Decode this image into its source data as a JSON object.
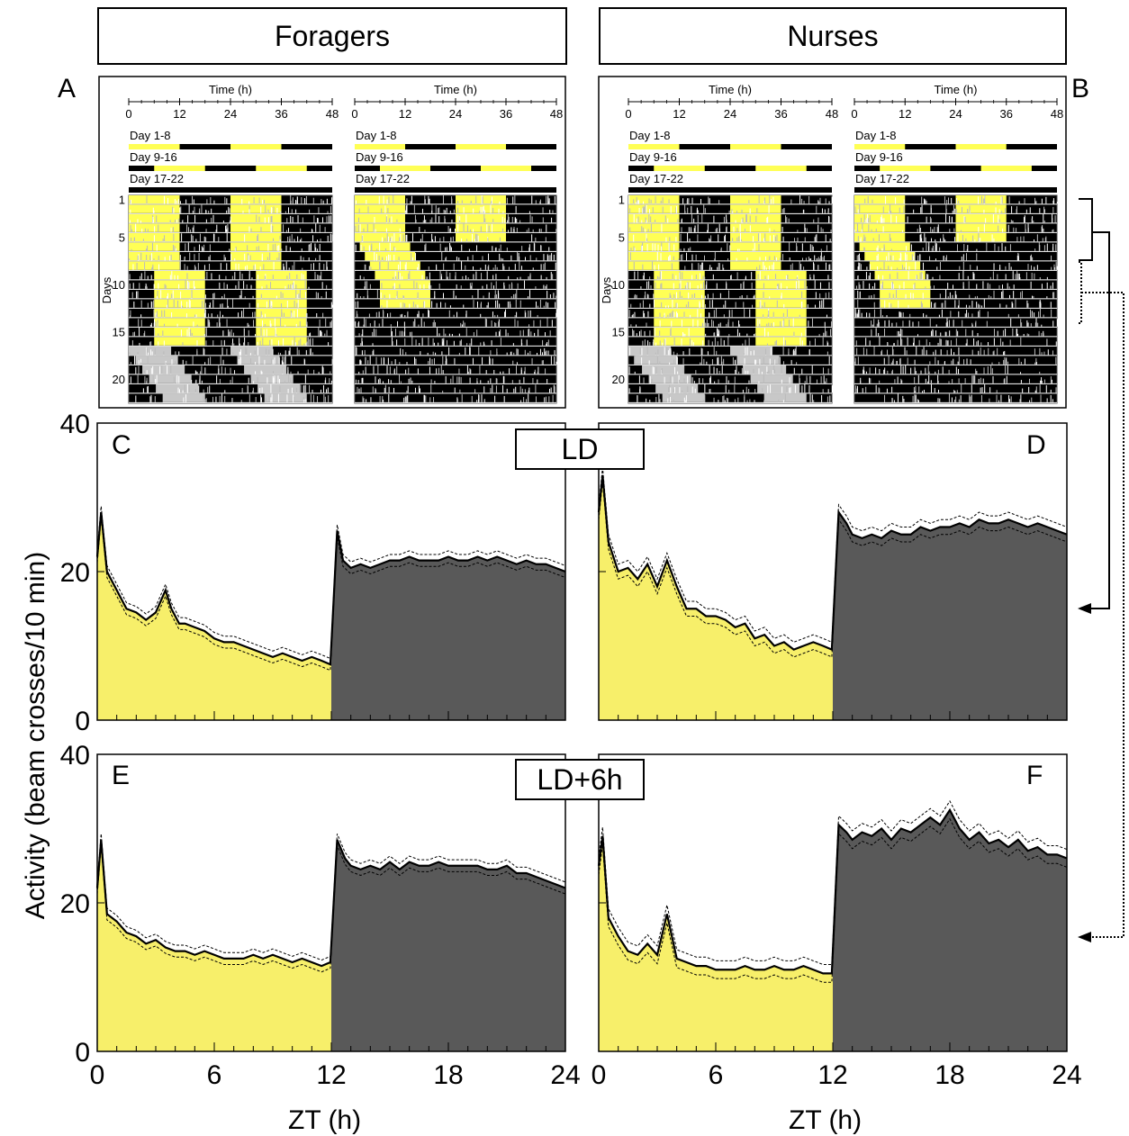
{
  "headers": {
    "left": "Foragers",
    "right": "Nurses"
  },
  "panel_labels": [
    "A",
    "B",
    "C",
    "D",
    "E",
    "F"
  ],
  "condition_tags": {
    "ld": "LD",
    "ld6": "LD+6h"
  },
  "y_axis_label": "Activity (beam crosses/10 min)",
  "x_axis_label": "ZT (h)",
  "actogram": {
    "time_label": "Time (h)",
    "time_ticks": [
      "0",
      "12",
      "24",
      "36",
      "48"
    ],
    "phase_labels": [
      "Day 1-8",
      "Day 9-16",
      "Day 17-22"
    ],
    "days_label": "Days",
    "day_ticks": [
      "1",
      "5",
      "10",
      "15",
      "20"
    ]
  },
  "colors": {
    "light": "#f7ef6a",
    "dark": "#595959",
    "actogram_light": "#ffff55",
    "actogram_bg": "#000000",
    "free_run": "#c8c8c8"
  },
  "chart_data": [
    {
      "panel": "C",
      "type": "area",
      "group": "Foragers",
      "condition": "LD",
      "xlabel": "ZT (h)",
      "ylabel": "Activity (beam crosses/10 min)",
      "xlim": [
        0,
        24
      ],
      "ylim": [
        0,
        40
      ],
      "xticks": [
        0,
        6,
        12,
        18,
        24
      ],
      "yticks": [
        0,
        20,
        40
      ],
      "light_phase": [
        0,
        12
      ],
      "dark_phase": [
        12,
        24
      ],
      "x": [
        0,
        0.2,
        0.5,
        1,
        1.5,
        2,
        2.5,
        3,
        3.5,
        3.8,
        4.2,
        4.5,
        5,
        5.5,
        6,
        6.5,
        7,
        7.5,
        8,
        8.5,
        9,
        9.5,
        10,
        10.5,
        11,
        11.5,
        11.95,
        12.3,
        12.6,
        13,
        13.5,
        14,
        14.5,
        15,
        15.5,
        16,
        16.5,
        17,
        17.5,
        18,
        18.5,
        19,
        19.5,
        20,
        20.5,
        21,
        21.5,
        22,
        22.5,
        23,
        23.5,
        24
      ],
      "mean": [
        22,
        28,
        20,
        17.5,
        15,
        14.5,
        13.5,
        14.5,
        17.5,
        15,
        13,
        13,
        12.5,
        12,
        11,
        10.5,
        10.5,
        10,
        9.5,
        9,
        8.5,
        9,
        8.5,
        8,
        8.5,
        8,
        7.5,
        25.5,
        21.5,
        20.5,
        21,
        20.5,
        21,
        21.5,
        21.5,
        22,
        21.5,
        21.5,
        21.5,
        22,
        21.5,
        21.5,
        22,
        21.5,
        22,
        21.5,
        21,
        21.5,
        21,
        21,
        20.5,
        20
      ],
      "se": 0.8
    },
    {
      "panel": "D",
      "type": "area",
      "group": "Nurses",
      "condition": "LD",
      "xlabel": "ZT (h)",
      "ylabel": "Activity (beam crosses/10 min)",
      "xlim": [
        0,
        24
      ],
      "ylim": [
        0,
        40
      ],
      "xticks": [
        0,
        6,
        12,
        18,
        24
      ],
      "yticks": [
        0,
        20,
        40
      ],
      "light_phase": [
        0,
        12
      ],
      "dark_phase": [
        12,
        24
      ],
      "x": [
        0,
        0.2,
        0.5,
        1,
        1.5,
        2,
        2.5,
        3,
        3.5,
        4,
        4.5,
        5,
        5.5,
        6,
        6.5,
        7,
        7.5,
        8,
        8.5,
        9,
        9.5,
        10,
        10.5,
        11,
        11.5,
        11.95,
        12.3,
        12.7,
        13,
        13.5,
        14,
        14.5,
        15,
        15.5,
        16,
        16.5,
        17,
        17.5,
        18,
        18.5,
        19,
        19.5,
        20,
        20.5,
        21,
        21.5,
        22,
        22.5,
        23,
        23.5,
        24
      ],
      "mean": [
        28,
        33,
        24,
        20,
        20.5,
        19,
        21,
        18,
        21.5,
        18,
        15,
        15,
        14,
        14,
        13.5,
        12.5,
        13,
        11,
        11.5,
        10,
        10.5,
        9.5,
        10,
        10.5,
        10,
        9.5,
        28,
        26.5,
        25,
        24.5,
        25,
        24.5,
        25.5,
        25,
        25,
        26,
        25.5,
        26,
        26,
        26.5,
        26,
        27,
        26.5,
        26.5,
        27,
        26.5,
        26,
        26.5,
        26,
        25.5,
        25
      ],
      "se": 1.0
    },
    {
      "panel": "E",
      "type": "area",
      "group": "Foragers",
      "condition": "LD+6h",
      "xlabel": "ZT (h)",
      "ylabel": "Activity (beam crosses/10 min)",
      "xlim": [
        0,
        24
      ],
      "ylim": [
        0,
        40
      ],
      "xticks": [
        0,
        6,
        12,
        18,
        24
      ],
      "yticks": [
        0,
        20,
        40
      ],
      "light_phase": [
        0,
        12
      ],
      "dark_phase": [
        12,
        24
      ],
      "x": [
        0,
        0.2,
        0.5,
        1,
        1.5,
        2,
        2.5,
        3,
        3.5,
        4,
        4.5,
        5,
        5.5,
        6,
        6.5,
        7,
        7.5,
        8,
        8.5,
        9,
        9.5,
        10,
        10.5,
        11,
        11.5,
        11.95,
        12.3,
        12.7,
        13,
        13.5,
        14,
        14.5,
        15,
        15.5,
        16,
        16.5,
        17,
        17.5,
        18,
        18.5,
        19,
        19.5,
        20,
        20.5,
        21,
        21.5,
        22,
        22.5,
        23,
        23.5,
        24
      ],
      "mean": [
        22,
        28.5,
        18.5,
        17.5,
        16,
        15.5,
        14.5,
        15,
        14,
        13.5,
        13.5,
        13,
        13.5,
        13,
        12.5,
        12.5,
        12.5,
        13,
        12.5,
        13,
        12.5,
        12,
        12.5,
        12,
        11.5,
        12,
        28.5,
        26,
        25,
        24.5,
        25,
        24.5,
        25.5,
        24.5,
        25.5,
        25,
        25,
        25.5,
        25,
        25,
        25,
        25,
        24.5,
        24.5,
        25,
        24,
        24,
        23.5,
        23,
        22.5,
        22
      ],
      "se": 0.8
    },
    {
      "panel": "F",
      "type": "area",
      "group": "Nurses",
      "condition": "LD+6h",
      "xlabel": "ZT (h)",
      "ylabel": "Activity (beam crosses/10 min)",
      "xlim": [
        0,
        24
      ],
      "ylim": [
        0,
        40
      ],
      "xticks": [
        0,
        6,
        12,
        18,
        24
      ],
      "yticks": [
        0,
        20,
        40
      ],
      "light_phase": [
        0,
        12
      ],
      "dark_phase": [
        12,
        24
      ],
      "x": [
        0,
        0.2,
        0.5,
        1,
        1.5,
        2,
        2.5,
        3,
        3.5,
        4,
        4.5,
        5,
        5.5,
        6,
        6.5,
        7,
        7.5,
        8,
        8.5,
        9,
        9.5,
        10,
        10.5,
        11,
        11.5,
        11.95,
        12.3,
        12.7,
        13,
        13.5,
        14,
        14.5,
        15,
        15.5,
        16,
        16.5,
        17,
        17.5,
        18,
        18.5,
        19,
        19.5,
        20,
        20.5,
        21,
        21.5,
        22,
        22.5,
        23,
        23.5,
        24
      ],
      "mean": [
        25,
        29,
        18,
        15.5,
        13.5,
        13,
        14.5,
        13,
        18.5,
        12.5,
        12,
        11.5,
        11.5,
        11,
        11,
        11,
        11.5,
        11,
        11,
        11.5,
        11,
        11,
        11.5,
        11,
        10.5,
        10.5,
        30.5,
        29.5,
        28.5,
        29.5,
        29,
        30,
        28.5,
        30,
        29.5,
        30.5,
        31.5,
        30.5,
        32.5,
        30,
        28.5,
        29.5,
        28,
        28.5,
        27.5,
        28.5,
        27,
        27.5,
        26.5,
        26.5,
        26
      ],
      "se": 1.2
    }
  ]
}
